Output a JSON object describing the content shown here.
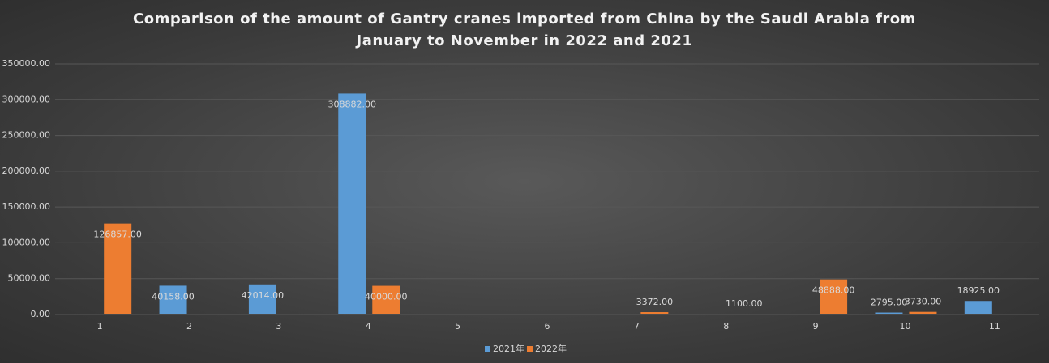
{
  "chart_data": {
    "type": "bar",
    "title": "Comparison of the amount of Gantry cranes imported from China by the Saudi Arabia from January to November in 2022 and 2021",
    "categories": [
      "1",
      "2",
      "3",
      "4",
      "5",
      "6",
      "7",
      "8",
      "9",
      "10",
      "11"
    ],
    "series": [
      {
        "name": "2021年",
        "color": "#5b9bd5",
        "values": [
          null,
          40158,
          42014,
          308882,
          null,
          null,
          null,
          null,
          null,
          2795,
          18925
        ],
        "value_labels": [
          null,
          "40158.00",
          "42014.00",
          "308882.00",
          null,
          null,
          null,
          null,
          null,
          "2795.00",
          "18925.00"
        ]
      },
      {
        "name": "2022年",
        "color": "#ed7d31",
        "values": [
          126857,
          null,
          null,
          40000,
          null,
          null,
          3372,
          1100,
          48888,
          3730,
          null
        ],
        "value_labels": [
          "126857.00",
          null,
          null,
          "40000.00",
          null,
          null,
          "3372.00",
          "1100.00",
          "48888.00",
          "3730.00",
          null
        ]
      }
    ],
    "ylim": [
      0,
      350000
    ],
    "yticks": [
      {
        "value": 0,
        "label": "0.00"
      },
      {
        "value": 50000,
        "label": "50000.00"
      },
      {
        "value": 100000,
        "label": "100000.00"
      },
      {
        "value": 150000,
        "label": "150000.00"
      },
      {
        "value": 200000,
        "label": "200000.00"
      },
      {
        "value": 250000,
        "label": "250000.00"
      },
      {
        "value": 300000,
        "label": "300000.00"
      },
      {
        "value": 350000,
        "label": "350000.00"
      }
    ],
    "grid": true,
    "legend": "bottom"
  }
}
